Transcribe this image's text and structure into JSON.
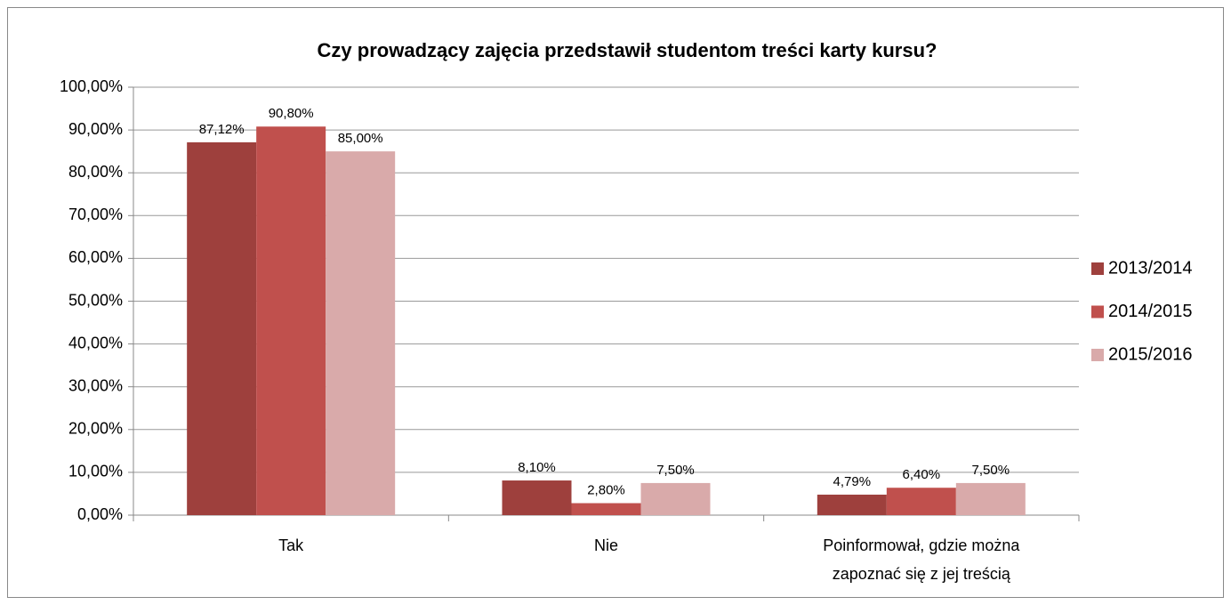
{
  "chart_data": {
    "type": "bar",
    "title": "Czy prowadzący zajęcia  przedstawił studentom treści karty kursu?",
    "categories": [
      "Tak",
      "Nie",
      "Poinformował, gdzie można zapoznać się z jej treścią"
    ],
    "series": [
      {
        "name": "2013/2014",
        "color": "#9e403d",
        "values": [
          87.12,
          8.1,
          4.79
        ],
        "value_labels": [
          "87,12%",
          "8,10%",
          "4,79%"
        ]
      },
      {
        "name": "2014/2015",
        "color": "#c0504d",
        "values": [
          90.8,
          2.8,
          6.4
        ],
        "value_labels": [
          "90,80%",
          "2,80%",
          "6,40%"
        ]
      },
      {
        "name": "2015/2016",
        "color": "#d9aaaa",
        "values": [
          85,
          7.5,
          7.5
        ],
        "value_labels": [
          "85,00%",
          "7,50%",
          "7,50%"
        ]
      }
    ],
    "ylim": [
      0,
      100
    ],
    "yticks": [
      {
        "value": 0,
        "label": "0,00%"
      },
      {
        "value": 10,
        "label": "10,00%"
      },
      {
        "value": 20,
        "label": "20,00%"
      },
      {
        "value": 30,
        "label": "30,00%"
      },
      {
        "value": 40,
        "label": "40,00%"
      },
      {
        "value": 50,
        "label": "50,00%"
      },
      {
        "value": 60,
        "label": "60,00%"
      },
      {
        "value": 70,
        "label": "70,00%"
      },
      {
        "value": 80,
        "label": "80,00%"
      },
      {
        "value": 90,
        "label": "90,00%"
      },
      {
        "value": 100,
        "label": "100,00%"
      }
    ],
    "grid": true,
    "legend": "right"
  }
}
